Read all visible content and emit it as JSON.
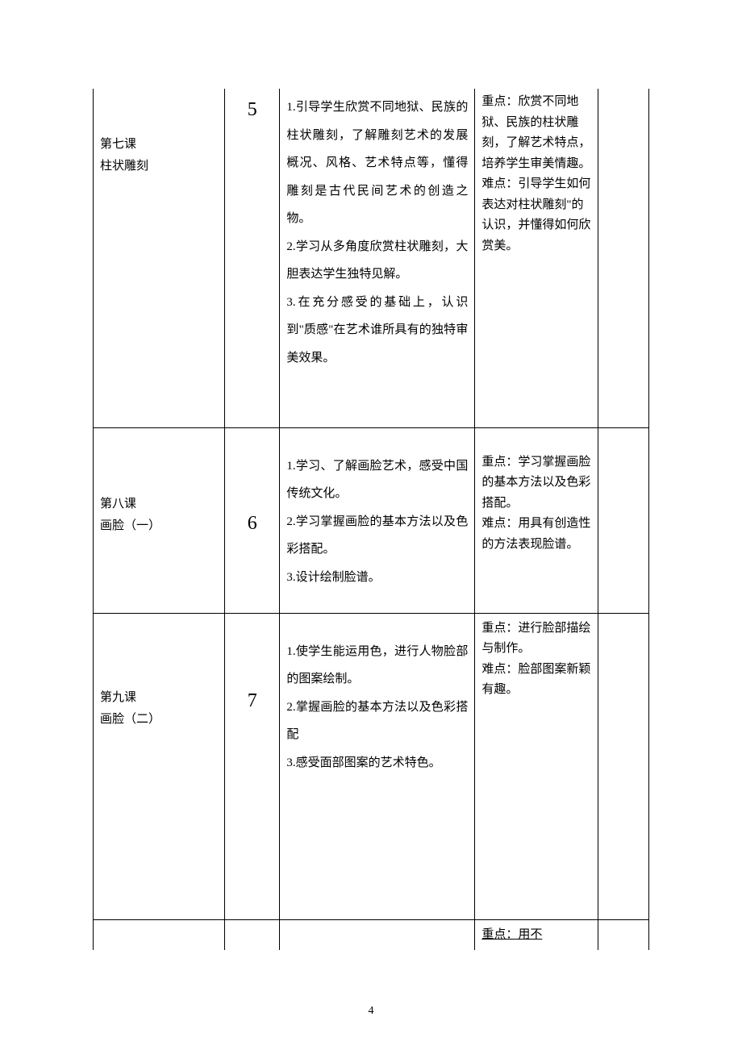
{
  "table": {
    "border_color": "#000000",
    "background_color": "#ffffff",
    "text_color": "#000000",
    "font_family_cjk": "SimSun",
    "font_family_number": "Times New Roman",
    "font_size_body": 15,
    "font_size_number": 24,
    "rows": [
      {
        "lesson": "第七课\n柱状雕刻",
        "number": "5",
        "content": "1.引导学生欣赏不同地狱、民族的柱状雕刻，了解雕刻艺术的发展概况、风格、艺术特点等，懂得雕刻是古代民间艺术的创造之物。\n2.学习从多角度欣赏柱状雕刻，大胆表达学生独特见解。\n3.在充分感受的基础上，认识到\"质感\"在艺术谁所具有的独特审美效果。",
        "keypoint": "重点：欣赏不同地狱、民族的柱状雕刻，了解艺术特点，培养学生审美情趣。\n难点：引导学生如何表达对柱状雕刻\"的认识，并懂得如何欣赏美。"
      },
      {
        "lesson": "第八课\n画脸（一）",
        "number": "6",
        "content": "1.学习、了解画脸艺术，感受中国传统文化。\n2.学习掌握画脸的基本方法以及色彩搭配。\n3.设计绘制脸谱。",
        "keypoint": "重点：学习掌握画脸的基本方法以及色彩搭配。\n难点：用具有创造性的方法表现脸谱。"
      },
      {
        "lesson": "第九课\n画脸（二）",
        "number": "7",
        "content": "1.使学生能运用色，进行人物脸部的图案绘制。\n2.掌握画脸的基本方法以及色彩搭配\n3.感受面部图案的艺术特色。",
        "keypoint": "重点：进行脸部描绘与制作。\n难点：脸部图案新颖有趣。"
      },
      {
        "lesson": "",
        "number": "",
        "content": "",
        "keypoint": "重点：用不"
      }
    ]
  },
  "page_number": "4"
}
